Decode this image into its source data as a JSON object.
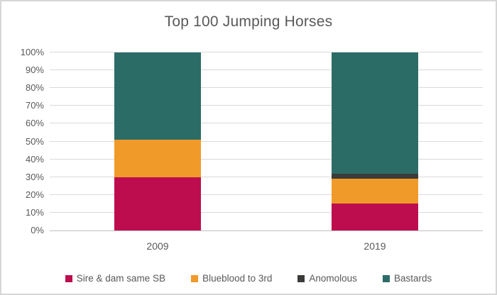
{
  "chart_data": {
    "type": "bar",
    "stacked": true,
    "percent_axis": true,
    "title": "Top 100 Jumping Horses",
    "categories": [
      "2009",
      "2019"
    ],
    "series": [
      {
        "name": "Sire & dam same SB",
        "color": "#be0d4e",
        "values": [
          30,
          15
        ]
      },
      {
        "name": "Blueblood to 3rd",
        "color": "#f09a29",
        "values": [
          21,
          14
        ]
      },
      {
        "name": "Anomolous",
        "color": "#3b3b39",
        "values": [
          0,
          3
        ]
      },
      {
        "name": "Bastards",
        "color": "#2c6c67",
        "values": [
          49,
          68
        ]
      }
    ],
    "ylim": [
      0,
      100
    ],
    "ytick_step": 10,
    "ytick_labels": [
      "0%",
      "10%",
      "20%",
      "30%",
      "40%",
      "50%",
      "60%",
      "70%",
      "80%",
      "90%",
      "100%"
    ],
    "xlabel": "",
    "ylabel": "",
    "grid": true,
    "legend_position": "bottom"
  },
  "colors": {
    "text": "#595959",
    "gridline": "#d9d9d9",
    "axis_line": "#bfbfbf",
    "border": "#d6d6d6",
    "background": "#ffffff"
  }
}
